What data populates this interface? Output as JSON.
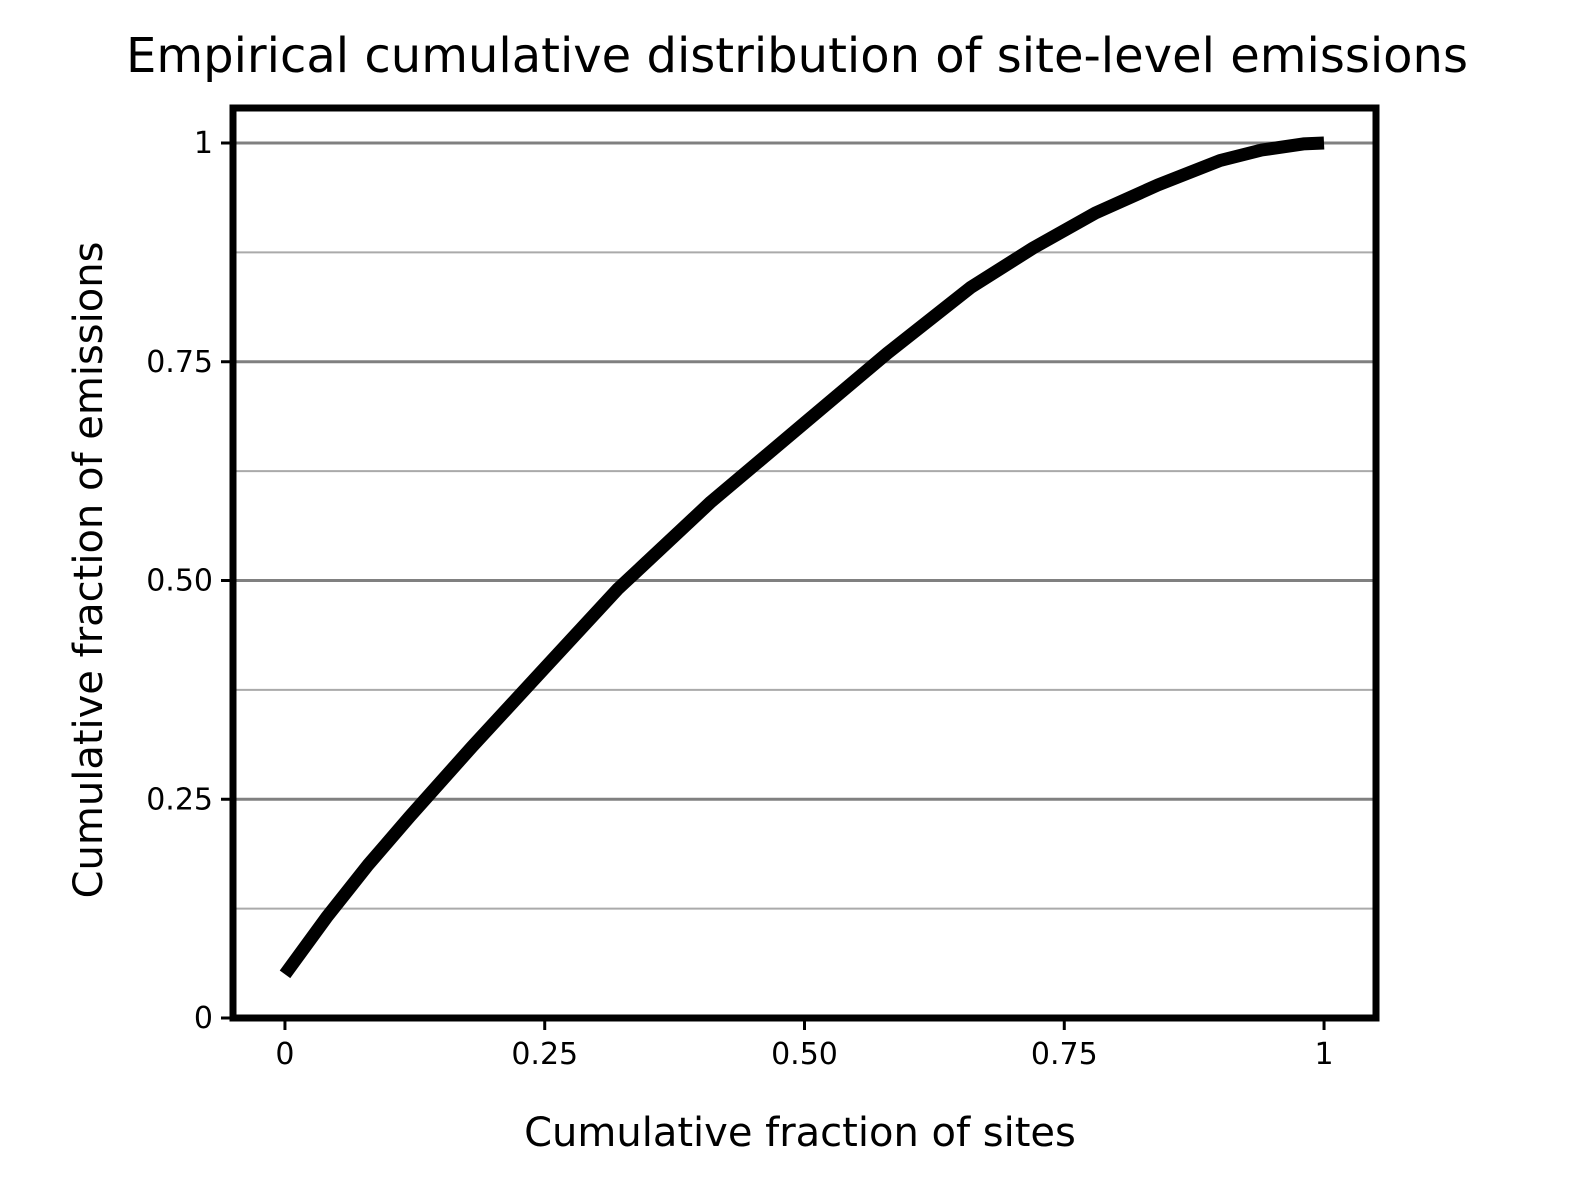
{
  "chart_data": {
    "type": "line",
    "title": "Empirical cumulative distribution of site-level emissions",
    "xlabel": "Cumulative fraction of sites",
    "ylabel": "Cumulative fraction of emissions",
    "xlim": [
      -0.05,
      1.05
    ],
    "ylim": [
      0,
      1.04
    ],
    "xticks": [
      {
        "value": 0,
        "label": "0"
      },
      {
        "value": 0.25,
        "label": "0.25"
      },
      {
        "value": 0.5,
        "label": "0.50"
      },
      {
        "value": 0.75,
        "label": "0.75"
      },
      {
        "value": 1,
        "label": "1"
      }
    ],
    "yticks": [
      {
        "value": 0,
        "label": "0"
      },
      {
        "value": 0.25,
        "label": "0.25"
      },
      {
        "value": 0.5,
        "label": "0.50"
      },
      {
        "value": 0.75,
        "label": "0.75"
      },
      {
        "value": 1,
        "label": "1"
      }
    ],
    "y_major_grid": [
      0.25,
      0.5,
      0.75,
      1
    ],
    "y_minor_grid": [
      0.125,
      0.375,
      0.625,
      0.875
    ],
    "grid": "horizontal",
    "colors": {
      "line": "#000000",
      "major_grid": "#808080",
      "minor_grid": "#aaaaaa",
      "frame": "#000000"
    },
    "series": [
      {
        "x": [
          0,
          0.04,
          0.08,
          0.12,
          0.18,
          0.25,
          0.32,
          0.41,
          0.5,
          0.58,
          0.66,
          0.72,
          0.78,
          0.84,
          0.9,
          0.94,
          0.98,
          1.0
        ],
        "y": [
          0.05,
          0.115,
          0.175,
          0.23,
          0.31,
          0.4,
          0.49,
          0.59,
          0.68,
          0.76,
          0.835,
          0.88,
          0.92,
          0.952,
          0.98,
          0.992,
          0.999,
          1.0
        ]
      }
    ]
  }
}
